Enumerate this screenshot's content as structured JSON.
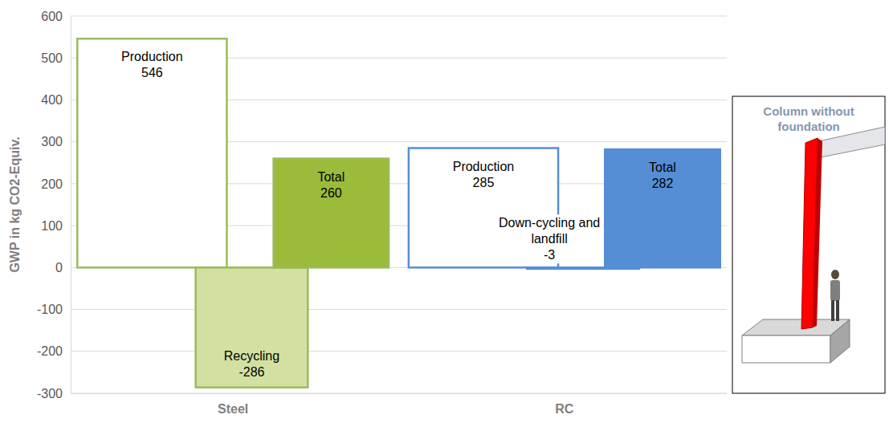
{
  "chart_data": {
    "type": "bar",
    "y_label": "GWP in kg CO2-Equiv.",
    "categories": [
      "Steel",
      "RC"
    ],
    "colors": [
      "#9bbb59",
      "#558ed5"
    ],
    "series": [
      {
        "bar_labels": [
          "Production",
          "Production"
        ],
        "values": [
          546,
          285
        ],
        "colors": [
          "#ffffff",
          "#ffffff"
        ]
      },
      {
        "bar_labels": [
          "Recycling",
          "Down-cycling and landfill"
        ],
        "values": [
          -286,
          -3
        ],
        "colors": [
          "#d2e1a2",
          "#ffffff"
        ]
      },
      {
        "bar_labels": [
          "Total",
          "Total"
        ],
        "values": [
          260,
          282
        ],
        "colors": [
          "#9bbb3b",
          "#558ed5"
        ]
      }
    ],
    "ylim": [
      -300,
      600
    ],
    "yticks": [
      -300,
      -200,
      -100,
      0,
      100,
      200,
      300,
      400,
      500,
      600
    ],
    "grid": true,
    "data_labels": true
  },
  "inset": {
    "title": "Column without foundation"
  }
}
